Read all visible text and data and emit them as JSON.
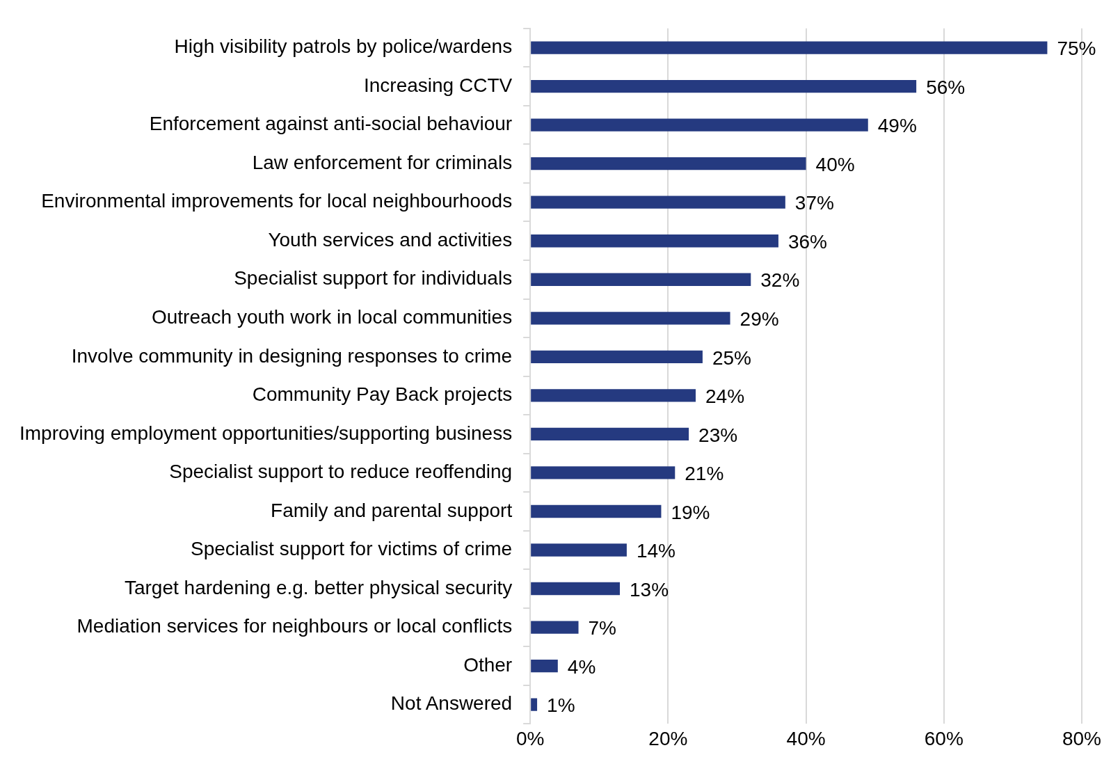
{
  "chart_data": {
    "type": "bar",
    "orientation": "horizontal",
    "categories": [
      "High visibility patrols by police/wardens",
      "Increasing CCTV",
      "Enforcement against anti-social behaviour",
      "Law enforcement for criminals",
      "Environmental improvements for local neighbourhoods",
      "Youth services and activities",
      "Specialist support for individuals",
      "Outreach youth work in local communities",
      "Involve community in designing responses to crime",
      "Community Pay Back projects",
      "Improving employment opportunities/supporting business",
      "Specialist support to reduce reoffending",
      "Family and parental support",
      "Specialist support for victims of crime",
      "Target hardening e.g. better physical security",
      "Mediation services for neighbours or local conflicts",
      "Other",
      "Not Answered"
    ],
    "values": [
      75,
      56,
      49,
      40,
      37,
      36,
      32,
      29,
      25,
      24,
      23,
      21,
      19,
      14,
      13,
      7,
      4,
      1
    ],
    "value_labels": [
      "75%",
      "56%",
      "49%",
      "40%",
      "37%",
      "36%",
      "32%",
      "29%",
      "25%",
      "24%",
      "23%",
      "21%",
      "19%",
      "14%",
      "13%",
      "7%",
      "4%",
      "1%"
    ],
    "color": "#253a80",
    "xlim": [
      0,
      80
    ],
    "xticks": [
      {
        "value": 0,
        "label": "0%"
      },
      {
        "value": 20,
        "label": "20%"
      },
      {
        "value": 40,
        "label": "40%"
      },
      {
        "value": 60,
        "label": "60%"
      },
      {
        "value": 80,
        "label": "80%"
      }
    ],
    "grid": "x",
    "legend": false
  }
}
